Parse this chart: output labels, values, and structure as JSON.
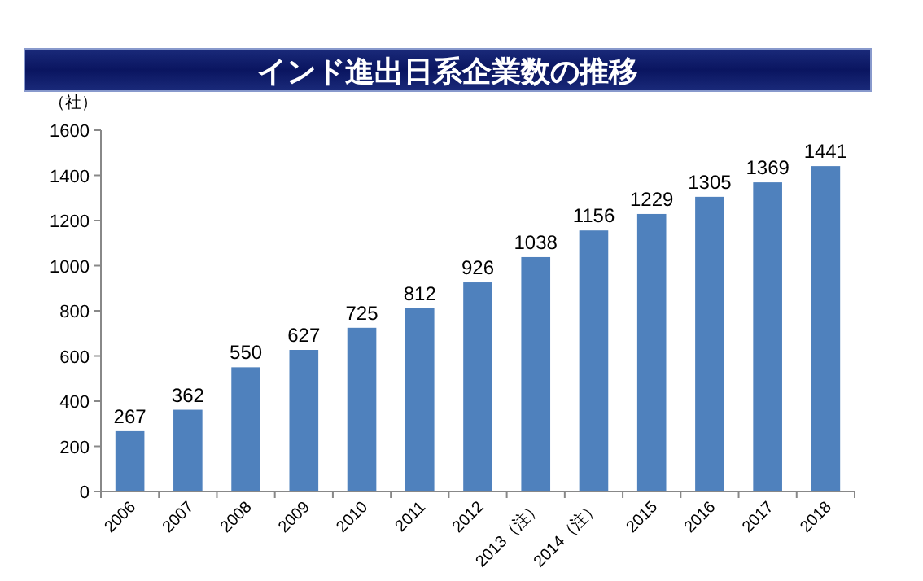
{
  "chart_data": {
    "type": "bar",
    "title": "インド進出日系企業数の推移",
    "ylabel": "（社）",
    "categories": [
      "2006",
      "2007",
      "2008",
      "2009",
      "2010",
      "2011",
      "2012",
      "2013（注）",
      "2014（注）",
      "2015",
      "2016",
      "2017",
      "2018"
    ],
    "values": [
      267,
      362,
      550,
      627,
      725,
      812,
      926,
      1038,
      1156,
      1229,
      1305,
      1369,
      1441
    ],
    "color": "#4f81bd",
    "ylim": [
      0,
      1600
    ],
    "yticks": [
      0,
      200,
      400,
      600,
      800,
      1000,
      1200,
      1400,
      1600
    ],
    "data_labels": true
  }
}
